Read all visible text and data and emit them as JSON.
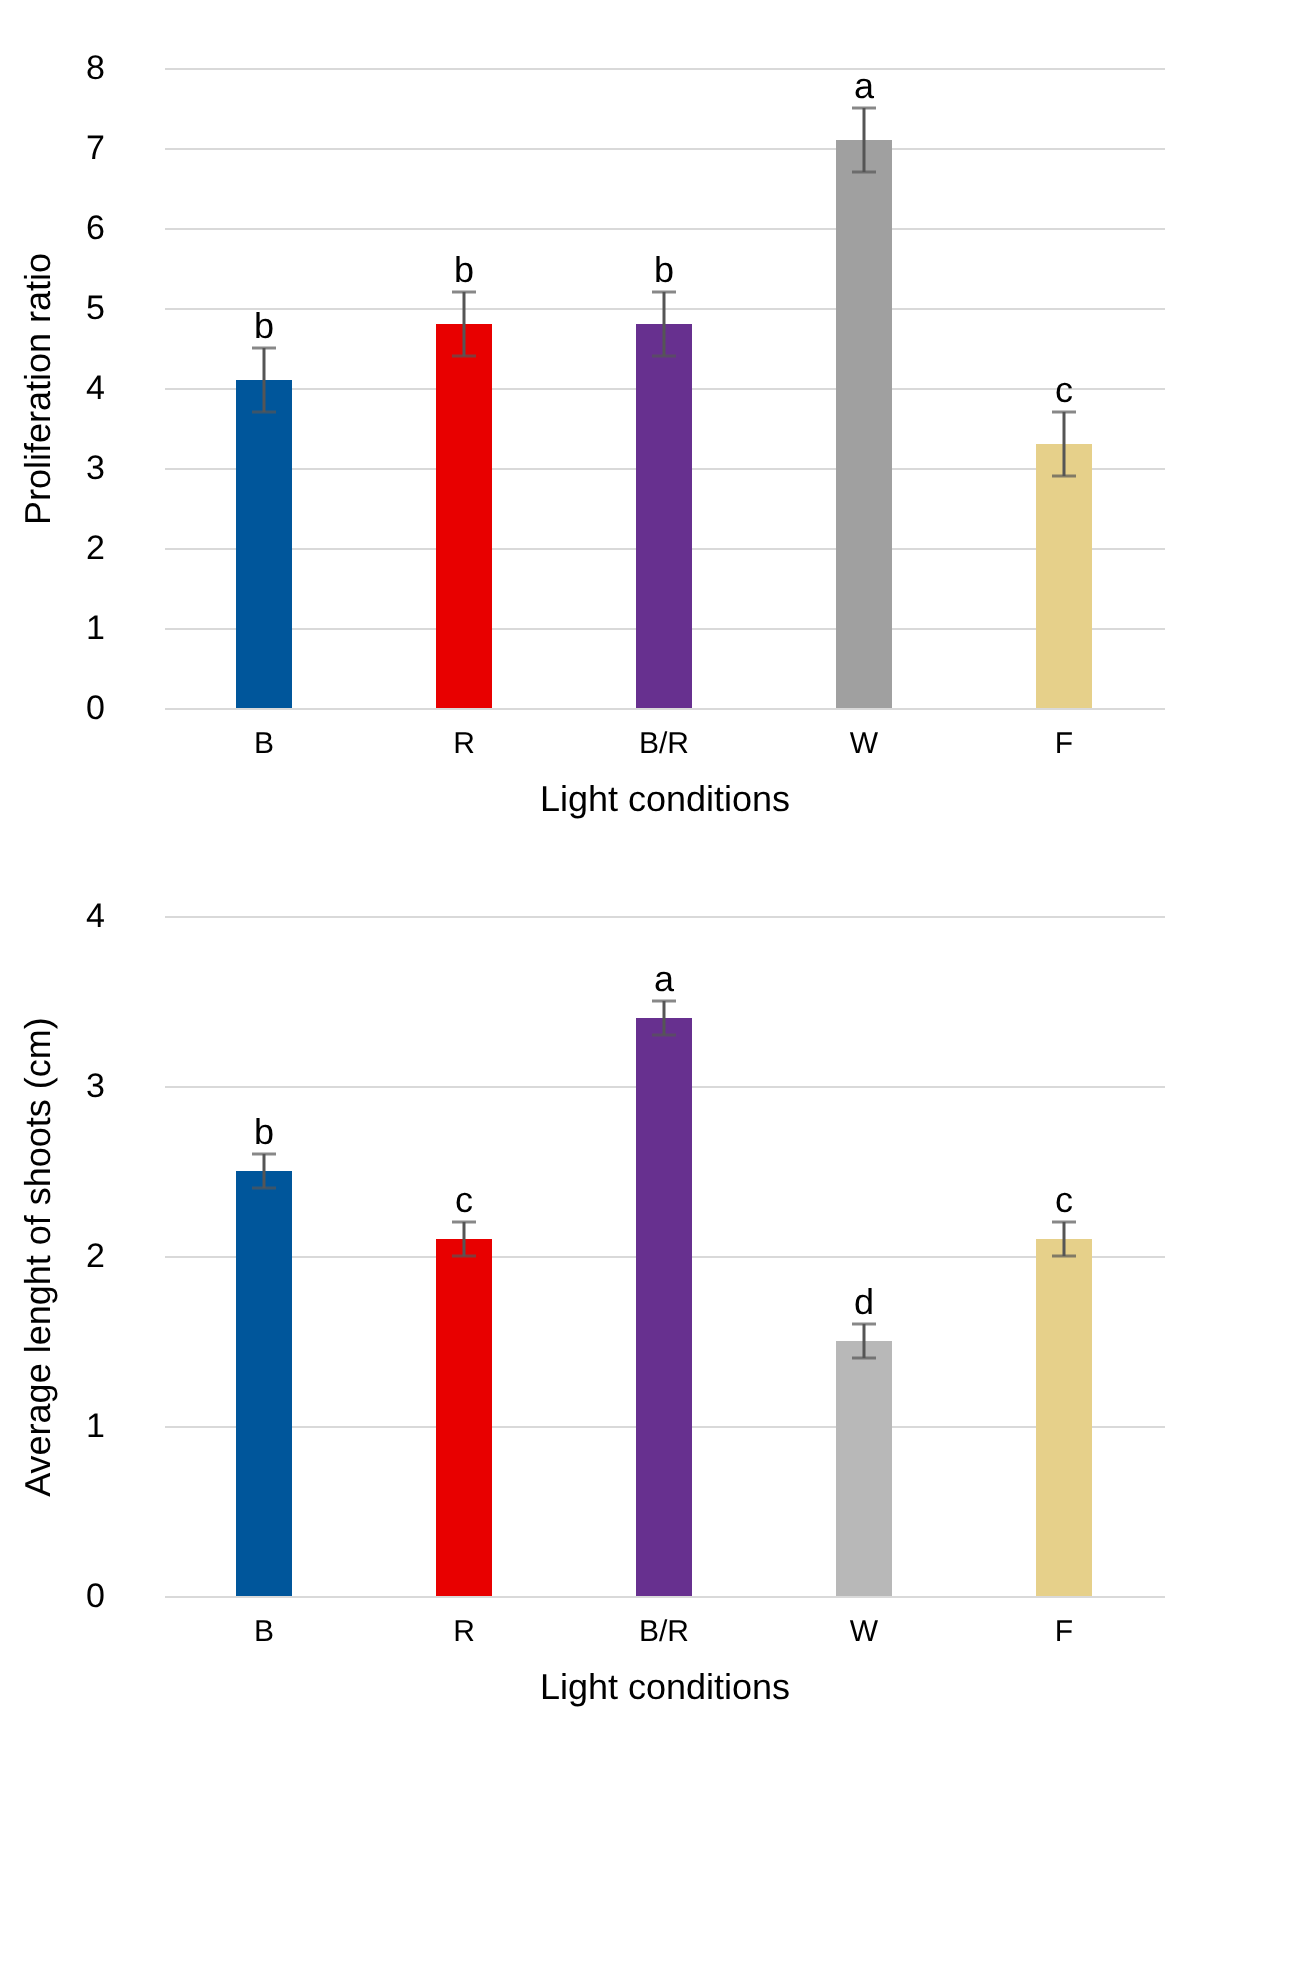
{
  "chart_data": [
    {
      "type": "bar",
      "xlabel": "Light conditions",
      "ylabel": "Proliferation ratio",
      "categories": [
        "B",
        "R",
        "B/R",
        "W",
        "F"
      ],
      "values": [
        4.1,
        4.8,
        4.8,
        7.1,
        3.3
      ],
      "errors": [
        0.4,
        0.4,
        0.4,
        0.4,
        0.4
      ],
      "colors": [
        "#00569b",
        "#e80000",
        "#67308f",
        "#a0a0a0",
        "#e6d08a"
      ],
      "ylim": [
        0,
        8
      ],
      "yticks": [
        0,
        1,
        2,
        3,
        4,
        5,
        6,
        7,
        8
      ],
      "grid": "y",
      "annotations": [
        {
          "text": "b",
          "x": "B",
          "y": 4.5
        },
        {
          "text": "b",
          "x": "R",
          "y": 5.2
        },
        {
          "text": "b",
          "x": "B/R",
          "y": 5.2
        },
        {
          "text": "a",
          "x": "W",
          "y": 7.5
        },
        {
          "text": "c",
          "x": "F",
          "y": 3.7
        }
      ]
    },
    {
      "type": "bar",
      "xlabel": "Light conditions",
      "ylabel": "Average lenght of shoots (cm)",
      "categories": [
        "B",
        "R",
        "B/R",
        "W",
        "F"
      ],
      "values": [
        2.5,
        2.1,
        3.4,
        1.5,
        2.1
      ],
      "errors": [
        0.1,
        0.1,
        0.1,
        0.1,
        0.1
      ],
      "colors": [
        "#00569b",
        "#e80000",
        "#67308f",
        "#b8b8b8",
        "#e6d08a"
      ],
      "ylim": [
        0,
        4
      ],
      "yticks": [
        0,
        1,
        2,
        3,
        4
      ],
      "grid": "y",
      "annotations": [
        {
          "text": "b",
          "x": "B",
          "y": 2.6
        },
        {
          "text": "c",
          "x": "R",
          "y": 2.2
        },
        {
          "text": "a",
          "x": "B/R",
          "y": 3.5
        },
        {
          "text": "d",
          "x": "W",
          "y": 1.6
        },
        {
          "text": "c",
          "x": "F",
          "y": 2.2
        }
      ]
    }
  ]
}
